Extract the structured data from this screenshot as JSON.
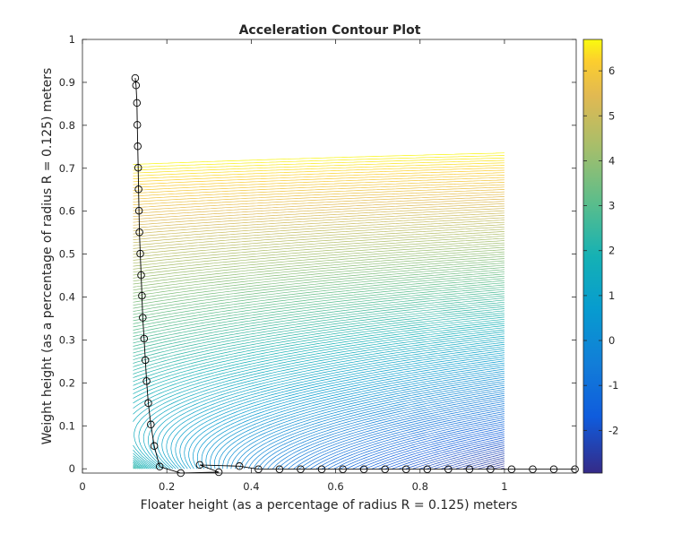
{
  "chart_data": {
    "type": "contour",
    "title": "Acceleration Contour Plot",
    "xlabel": "Floater height (as a percentage of radius R = 0.125) meters",
    "ylabel": "Weight height (as a percentage of radius R = 0.125) meters",
    "xlim": [
      0,
      1.17
    ],
    "ylim": [
      -0.01,
      1.0
    ],
    "contour_domain": {
      "x": [
        0.12,
        1.0
      ],
      "y": [
        0,
        0.98
      ]
    },
    "xticks": [
      0,
      0.2,
      0.4,
      0.6,
      0.8,
      1
    ],
    "xtick_labels": [
      "0",
      "0.2",
      "0.4",
      "0.6",
      "0.8",
      "1"
    ],
    "yticks": [
      0,
      0.1,
      0.2,
      0.3,
      0.4,
      0.5,
      0.6,
      0.7,
      0.8,
      0.9,
      1
    ],
    "ytick_labels": [
      "0",
      "0.1",
      "0.2",
      "0.3",
      "0.4",
      "0.5",
      "0.6",
      "0.7",
      "0.8",
      "0.9",
      "1"
    ],
    "colorbar": {
      "colormap": "parula",
      "clim": [
        -2.95,
        6.7
      ],
      "ticks": [
        -2,
        -1,
        0,
        1,
        2,
        3,
        4,
        5,
        6
      ],
      "tick_labels": [
        "-2",
        "-1",
        "0",
        "1",
        "2",
        "3",
        "4",
        "5",
        "6"
      ]
    },
    "grid": false,
    "series": [
      {
        "type": "line-with-circle-markers",
        "color": "#000000",
        "x": [
          0.125,
          0.127,
          0.129,
          0.13,
          0.131,
          0.132,
          0.133,
          0.134,
          0.135,
          0.137,
          0.139,
          0.141,
          0.143,
          0.146,
          0.149,
          0.152,
          0.156,
          0.162,
          0.17,
          0.183,
          0.233,
          0.323,
          0.278,
          0.372,
          0.417,
          0.467,
          0.517,
          0.567,
          0.617,
          0.667,
          0.717,
          0.767,
          0.817,
          0.867,
          0.917,
          0.967,
          1.017,
          1.067,
          1.117,
          1.167
        ],
        "y": [
          0.91,
          0.893,
          0.852,
          0.801,
          0.751,
          0.701,
          0.651,
          0.601,
          0.551,
          0.501,
          0.451,
          0.403,
          0.352,
          0.303,
          0.253,
          0.204,
          0.153,
          0.103,
          0.053,
          0.005,
          -0.01,
          -0.008,
          0.009,
          0.006,
          -0.001,
          -0.001,
          -0.001,
          -0.001,
          -0.001,
          -0.001,
          -0.001,
          -0.001,
          -0.001,
          -0.001,
          -0.001,
          -0.001,
          -0.001,
          -0.001,
          -0.001,
          -0.001
        ]
      }
    ]
  }
}
